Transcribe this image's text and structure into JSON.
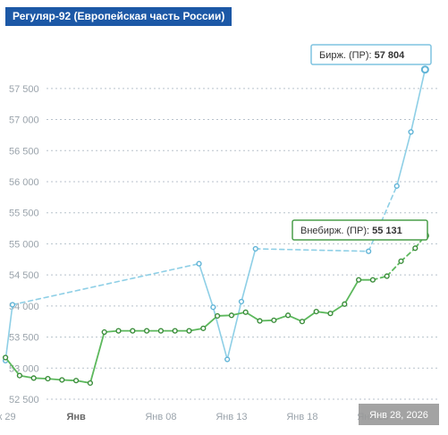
{
  "chart_title": "Регуляр-92 (Европейская часть России)",
  "colors": {
    "title_bg": "#1c58a6",
    "exchange_line": "#8ecfe6",
    "exchange_marker": "#5fb3d6",
    "otc_line": "#5cb85c",
    "otc_marker": "#3a8d3a",
    "gridline": "#b8c2cc",
    "axis_text": "#9aa3ab",
    "exchange_label_border": "#7fc3e0",
    "otc_label_border": "#4a9e4a",
    "crosshair_bg": "#999999"
  },
  "chart_data": {
    "type": "line",
    "title": "Регуляр-92 (Европейская часть России)",
    "ylim": [
      52500,
      57800
    ],
    "y_ticks": [
      "52 500",
      "53 000",
      "53 500",
      "54 000",
      "54 500",
      "55 000",
      "55 500",
      "56 000",
      "56 500",
      "57 000",
      "57 500"
    ],
    "x_ticks": [
      {
        "day": -0.6,
        "label": "ек 29"
      },
      {
        "day": 4.5,
        "label": "Янв",
        "bold": true
      },
      {
        "day": 10.5,
        "label": "Янв 08"
      },
      {
        "day": 15.5,
        "label": "Янв 13"
      },
      {
        "day": 20.5,
        "label": "Янв 18"
      },
      {
        "day": 25.5,
        "label": "Янв 23"
      }
    ],
    "crosshair_label": "Янв 28, 2026",
    "series": [
      {
        "name": "Бирж. (ПР)",
        "last_value": "57 804",
        "points": [
          [
            -0.5,
            53120
          ],
          [
            0,
            54020
          ],
          [
            13.2,
            54680
          ],
          [
            14.2,
            53980
          ],
          [
            15.2,
            53140
          ],
          [
            16.2,
            54070
          ],
          [
            17.2,
            54920
          ],
          [
            25.2,
            54880
          ],
          [
            27.2,
            55930
          ],
          [
            28.2,
            56800
          ],
          [
            29.2,
            57804
          ]
        ],
        "dashed_segments": [
          [
            1,
            2
          ],
          [
            6,
            7
          ],
          [
            7,
            8
          ]
        ]
      },
      {
        "name": "Внебирж. (ПР)",
        "last_value": "55 131",
        "points": [
          [
            -0.5,
            53170
          ],
          [
            0.5,
            52880
          ],
          [
            1.5,
            52840
          ],
          [
            2.5,
            52830
          ],
          [
            3.5,
            52810
          ],
          [
            4.5,
            52800
          ],
          [
            5.5,
            52760
          ],
          [
            6.5,
            53580
          ],
          [
            7.5,
            53600
          ],
          [
            8.5,
            53600
          ],
          [
            9.5,
            53600
          ],
          [
            10.5,
            53600
          ],
          [
            11.5,
            53600
          ],
          [
            12.5,
            53600
          ],
          [
            13.5,
            53640
          ],
          [
            14.5,
            53840
          ],
          [
            15.5,
            53850
          ],
          [
            16.5,
            53900
          ],
          [
            17.5,
            53760
          ],
          [
            18.5,
            53770
          ],
          [
            19.5,
            53850
          ],
          [
            20.5,
            53750
          ],
          [
            21.5,
            53910
          ],
          [
            22.5,
            53880
          ],
          [
            23.5,
            54030
          ],
          [
            24.5,
            54420
          ],
          [
            25.5,
            54420
          ],
          [
            26.5,
            54480
          ],
          [
            27.5,
            54720
          ],
          [
            28.5,
            54930
          ],
          [
            29.2,
            55131
          ]
        ],
        "dashed_segments": [
          [
            26,
            27
          ],
          [
            27,
            28
          ],
          [
            28,
            29
          ],
          [
            29,
            30
          ]
        ]
      }
    ]
  }
}
